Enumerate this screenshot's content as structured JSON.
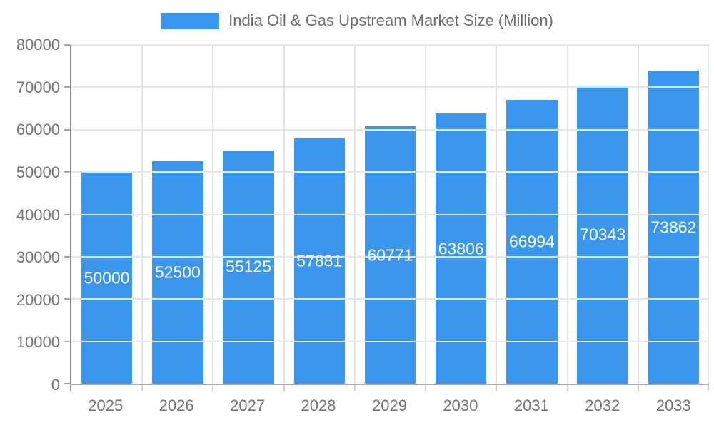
{
  "chart_data": {
    "type": "bar",
    "title": "India Oil & Gas Upstream Market Size (Million)",
    "legend_position": "top",
    "grid": true,
    "categories": [
      "2025",
      "2026",
      "2027",
      "2028",
      "2029",
      "2030",
      "2031",
      "2032",
      "2033"
    ],
    "values": [
      50000,
      52500,
      55125,
      57881,
      60771,
      63806,
      66994,
      70343,
      73862
    ],
    "xlabel": "",
    "ylabel": "",
    "ylim": [
      0,
      80000
    ],
    "yticks": [
      0,
      10000,
      20000,
      30000,
      40000,
      50000,
      60000,
      70000,
      80000
    ],
    "colors": {
      "bar": "#3B96EE",
      "grid": "#e6e6e6",
      "y_axis_line": "#8f8f8f",
      "x_axis_line": "#ababab",
      "tick_mark": "#9e9e9e",
      "x_tick_mark": "#cfcfcf",
      "tick_label_text": "#757575",
      "legend_text": "#6e6e6e",
      "value_label_text": "#ffffff"
    }
  }
}
